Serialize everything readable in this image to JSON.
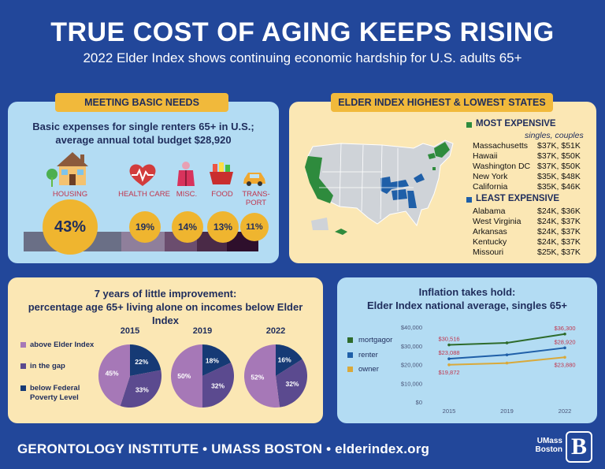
{
  "header": {
    "title": "TRUE COST OF AGING KEEPS RISING",
    "subtitle": "2022 Elder Index shows continuing economic hardship for U.S. adults 65+"
  },
  "basic_needs": {
    "tag": "MEETING BASIC NEEDS",
    "heading_line1": "Basic expenses for single renters 65+ in U.S.;",
    "heading_line2": "average annual total budget $28,920",
    "categories": [
      {
        "label": "HOUSING",
        "pct": "43%",
        "color": "#6a6f86"
      },
      {
        "label": "HEALTH CARE",
        "pct": "19%",
        "color": "#8f7f9b"
      },
      {
        "label": "MISC.",
        "pct": "14%",
        "color": "#6b4d6e"
      },
      {
        "label": "FOOD",
        "pct": "13%",
        "color": "#4a2a47"
      },
      {
        "label": "TRANS-",
        "label2": "PORT",
        "pct": "11%",
        "color": "#2e0f2c"
      }
    ]
  },
  "states": {
    "tag": "ELDER INDEX HIGHEST & LOWEST STATES",
    "most_title": "MOST EXPENSIVE",
    "most_sub": "singles, couples",
    "most": [
      {
        "state": "Massachusetts",
        "value": "$37K, $51K"
      },
      {
        "state": "Hawaii",
        "value": "$37K, $50K"
      },
      {
        "state": "Washington DC",
        "value": "$37K, $50K"
      },
      {
        "state": "New York",
        "value": "$35K, $48K"
      },
      {
        "state": "California",
        "value": "$35K, $46K"
      }
    ],
    "least_title": "LEAST EXPENSIVE",
    "least": [
      {
        "state": "Alabama",
        "value": "$24K, $36K"
      },
      {
        "state": "West Virginia",
        "value": "$24K, $37K"
      },
      {
        "state": "Arkansas",
        "value": "$24K, $37K"
      },
      {
        "state": "Kentucky",
        "value": "$24K, $37K"
      },
      {
        "state": "Missouri",
        "value": "$25K, $37K"
      }
    ],
    "colors": {
      "most": "#2e8b3d",
      "least": "#1f5fa8",
      "other": "#cfd3d8"
    }
  },
  "pies": {
    "heading_line1": "7 years of little improvement:",
    "heading_line2": "percentage age 65+ living alone on incomes below Elder Index",
    "legend": [
      {
        "label": "above Elder Index",
        "color": "#a678b7"
      },
      {
        "label": "in the gap",
        "color": "#5b4a8f"
      },
      {
        "label": "below Federal",
        "label2": "Poverty Level",
        "color": "#163a75"
      }
    ]
  },
  "inflation": {
    "heading_line1": "Inflation takes hold:",
    "heading_line2": "Elder Index national average, singles 65+"
  },
  "chart_data": [
    {
      "type": "pie",
      "title": "2015",
      "labels": [
        "above Elder Index",
        "in the gap",
        "below Federal Poverty Level"
      ],
      "values": [
        45,
        33,
        22
      ],
      "value_labels": [
        "45%",
        "33%",
        "22%"
      ]
    },
    {
      "type": "pie",
      "title": "2019",
      "labels": [
        "above Elder Index",
        "in the gap",
        "below Federal Poverty Level"
      ],
      "values": [
        50,
        32,
        18
      ],
      "value_labels": [
        "50%",
        "32%",
        "18%"
      ]
    },
    {
      "type": "pie",
      "title": "2022",
      "labels": [
        "above Elder Index",
        "in the gap",
        "below Federal Poverty Level"
      ],
      "values": [
        52,
        32,
        16
      ],
      "value_labels": [
        "52%",
        "32%",
        "16%"
      ]
    },
    {
      "type": "line",
      "title": "",
      "x": [
        "2015",
        "2019",
        "2022"
      ],
      "ylim": [
        0,
        40000
      ],
      "yticks": [
        "$0",
        "$10,000",
        "$20,000",
        "$30,000",
        "$40,000"
      ],
      "series": [
        {
          "name": "mortgagor",
          "color": "#2e6b2b",
          "values": [
            30516,
            31600,
            36300
          ],
          "labels": [
            "$30,516",
            "",
            "$36,300"
          ]
        },
        {
          "name": "renter",
          "color": "#1f5fa8",
          "values": [
            23088,
            25200,
            28920
          ],
          "labels": [
            "$23,088",
            "",
            "$28,920"
          ]
        },
        {
          "name": "owner",
          "color": "#d9a93a",
          "values": [
            19872,
            20800,
            23880
          ],
          "labels": [
            "$19,872",
            "",
            "$23,880"
          ]
        }
      ]
    }
  ],
  "footer": {
    "text": "GERONTOLOGY INSTITUTE • UMASS BOSTON • elderindex.org",
    "logo_line1": "UMass",
    "logo_line2": "Boston",
    "logo_mark": "B"
  }
}
